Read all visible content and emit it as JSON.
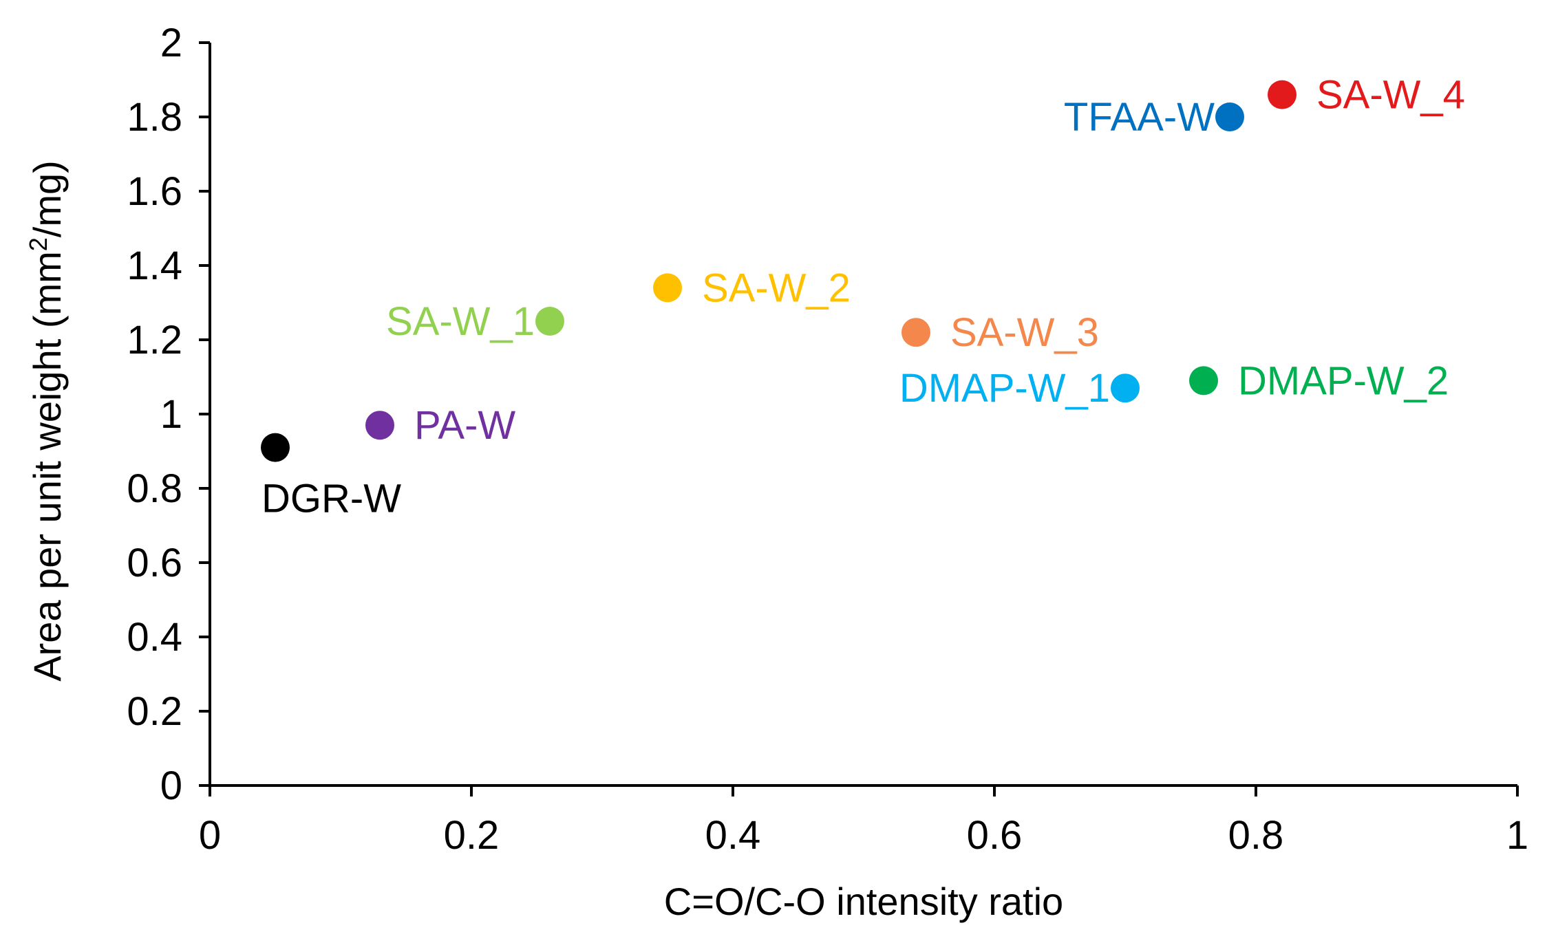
{
  "chart_data": {
    "type": "scatter",
    "title": "",
    "xlabel": "C=O/C-O intensity ratio",
    "ylabel_parts": [
      "Area per unit weight (mm",
      "2",
      "/mg)"
    ],
    "xlim": [
      0,
      1
    ],
    "ylim": [
      0,
      2
    ],
    "xticks": [
      "0",
      "0.2",
      "0.4",
      "0.6",
      "0.8",
      "1"
    ],
    "xtick_values": [
      0,
      0.2,
      0.4,
      0.6,
      0.8,
      1
    ],
    "yticks": [
      "0",
      "0.2",
      "0.4",
      "0.6",
      "0.8",
      "1",
      "1.2",
      "1.4",
      "1.6",
      "1.8",
      "2"
    ],
    "ytick_values": [
      0,
      0.2,
      0.4,
      0.6,
      0.8,
      1,
      1.2,
      1.4,
      1.6,
      1.8,
      2
    ],
    "grid": false,
    "legend": "none",
    "points": [
      {
        "name": "DGR-W",
        "x": 0.05,
        "y": 0.91,
        "color": "#000000",
        "label_pos": "below"
      },
      {
        "name": "PA-W",
        "x": 0.13,
        "y": 0.97,
        "color": "#7030A0",
        "label_pos": "right"
      },
      {
        "name": "SA-W_1",
        "x": 0.26,
        "y": 1.25,
        "color": "#92D050",
        "label_pos": "left"
      },
      {
        "name": "SA-W_2",
        "x": 0.35,
        "y": 1.34,
        "color": "#FFC000",
        "label_pos": "right"
      },
      {
        "name": "SA-W_3",
        "x": 0.54,
        "y": 1.22,
        "color": "#F4874B",
        "label_pos": "right"
      },
      {
        "name": "DMAP-W_1",
        "x": 0.7,
        "y": 1.07,
        "color": "#00B0F0",
        "label_pos": "left"
      },
      {
        "name": "DMAP-W_2",
        "x": 0.76,
        "y": 1.09,
        "color": "#00B050",
        "label_pos": "right"
      },
      {
        "name": "TFAA-W",
        "x": 0.78,
        "y": 1.8,
        "color": "#0070C0",
        "label_pos": "left"
      },
      {
        "name": "SA-W_4",
        "x": 0.82,
        "y": 1.86,
        "color": "#E31A1C",
        "label_pos": "right"
      }
    ]
  }
}
